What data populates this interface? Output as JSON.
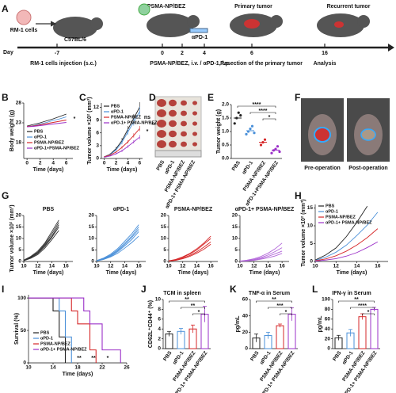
{
  "panels": [
    "A",
    "B",
    "C",
    "D",
    "E",
    "F",
    "G",
    "H",
    "I",
    "J",
    "K",
    "L"
  ],
  "timeline": {
    "cells": "RM-1 cells",
    "strain": "C57BL/6",
    "drug": "PSMA-NP/BEZ",
    "antibody": "αPD-1",
    "primary": "Primary tumor",
    "recurrent": "Recurrent tumor",
    "day_label": "Day",
    "days": [
      -7,
      0,
      2,
      4,
      6,
      16
    ],
    "steps": [
      "RM-1 cells injection (s.c.)",
      "PSMA-NP/BEZ, i.v. / αPD-1, i.p.",
      "Resection of the primary tumor",
      "Analysis"
    ]
  },
  "photo_d": {
    "labels": [
      "PBS",
      "αPD-1",
      "PSMA-NP/BEZ",
      "αPD-1+ PSMA-NP/BEZ"
    ]
  },
  "photo_f": {
    "labels": [
      "Pre-operation",
      "Post-operation"
    ]
  },
  "chart_data": [
    {
      "type": "line",
      "ylabel": "Body weight (g)",
      "xlabel": "Time (days)",
      "x": [
        0,
        1,
        2,
        3,
        4,
        5,
        6
      ],
      "xlim": [
        -0.5,
        7
      ],
      "xticks": [
        0,
        2,
        4,
        6
      ],
      "ylim": [
        14,
        28
      ],
      "yticks": [
        18,
        23,
        28
      ],
      "series": [
        {
          "name": "PBS",
          "color": "#222222",
          "values": [
            22.2,
            22.6,
            23,
            23.5,
            24,
            24.6,
            25.2
          ]
        },
        {
          "name": "αPD-1",
          "color": "#4a90d9",
          "values": [
            22,
            22.3,
            22.7,
            23.1,
            23.6,
            24,
            24.5
          ]
        },
        {
          "name": "PSMA-NP/BEZ",
          "color": "#d62728",
          "values": [
            22.1,
            22.2,
            22.5,
            22.8,
            23.1,
            23.4,
            23.7
          ]
        },
        {
          "name": "αPD-1+PSMA-NP/BEZ",
          "color": "#9b30c8",
          "values": [
            22,
            22.1,
            22.3,
            22.5,
            22.7,
            22.9,
            23.1
          ]
        }
      ],
      "annotations": [
        "*"
      ]
    },
    {
      "type": "line",
      "ylabel": "Tumor volume ×10² (mm³)",
      "xlabel": "Time (days)",
      "x": [
        0,
        1,
        2,
        3,
        4,
        5,
        6
      ],
      "xlim": [
        -0.5,
        6.5
      ],
      "xticks": [
        0,
        2,
        4,
        6
      ],
      "ylim": [
        0,
        13
      ],
      "yticks": [
        0,
        3,
        6,
        9,
        12
      ],
      "series": [
        {
          "name": "PBS",
          "color": "#222222",
          "values": [
            0.4,
            1,
            2.3,
            4.2,
            6.8,
            9.4,
            12
          ],
          "errors": [
            0.1,
            0.2,
            0.4,
            0.6,
            0.8,
            1,
            1.2
          ]
        },
        {
          "name": "αPD-1",
          "color": "#4a90d9",
          "values": [
            0.4,
            0.9,
            2,
            3.8,
            6.2,
            8.6,
            11
          ],
          "errors": [
            0.1,
            0.2,
            0.3,
            0.5,
            0.7,
            0.9,
            1.1
          ]
        },
        {
          "name": "PSMA-NP/BEZ",
          "color": "#d62728",
          "values": [
            0.4,
            0.8,
            1.5,
            2.6,
            3.9,
            5.4,
            7
          ],
          "errors": [
            0.1,
            0.1,
            0.2,
            0.3,
            0.4,
            0.5,
            0.6
          ]
        },
        {
          "name": "αPD-1+ PSMA-NP/BEZ",
          "color": "#9b30c8",
          "values": [
            0.3,
            0.6,
            1.1,
            1.8,
            2.8,
            3.9,
            5
          ],
          "errors": [
            0.1,
            0.1,
            0.2,
            0.3,
            0.3,
            0.4,
            0.5
          ]
        }
      ],
      "annotations": [
        "ns",
        "*",
        "**"
      ]
    },
    {
      "type": "scatter",
      "ylabel": "Tumor weight (g)",
      "categories": [
        "PBS",
        "αPD-1",
        "PSMA-NP/BEZ",
        "αPD-1+PSMA-NP/BEZ"
      ],
      "ylim": [
        0,
        2
      ],
      "yticks": [
        {
          "value": 0,
          "label": "0.0"
        },
        0.5,
        {
          "value": 1,
          "label": "1.0"
        },
        1.5,
        {
          "value": 2,
          "label": "2.0"
        }
      ],
      "groups": [
        {
          "color": "#222222",
          "points": [
            1.3,
            1.5,
            1.7,
            1.6
          ],
          "mean": 1.5
        },
        {
          "color": "#4a90d9",
          "points": [
            0.9,
            1.0,
            1.1,
            1.2,
            0.95
          ],
          "mean": 1.03
        },
        {
          "color": "#d62728",
          "points": [
            0.5,
            0.6,
            0.7
          ],
          "mean": 0.6
        },
        {
          "color": "#9b30c8",
          "points": [
            0.2,
            0.3,
            0.35,
            0.45,
            0.25
          ],
          "mean": 0.31
        }
      ],
      "annotations": [
        "****",
        "****",
        "*"
      ]
    },
    {
      "type": "line",
      "title": "PBS",
      "ylabel": "Tumor volume ×10² (mm³)",
      "xlabel": "Time (days)",
      "xlim": [
        10,
        17
      ],
      "xticks": [
        10,
        12,
        14,
        16
      ],
      "ylim": [
        0,
        20
      ],
      "yticks": [
        0,
        5,
        10,
        15,
        20
      ],
      "series": [
        {
          "color": "#333333",
          "x": [
            10,
            11,
            12,
            13,
            14,
            15
          ],
          "values": [
            0.5,
            2,
            4,
            7.5,
            12,
            17
          ]
        },
        {
          "color": "#333333",
          "x": [
            10,
            11,
            12,
            13,
            14,
            15
          ],
          "values": [
            0.4,
            1.6,
            3.5,
            6.5,
            10.5,
            15
          ]
        },
        {
          "color": "#333333",
          "x": [
            10,
            11,
            12,
            13,
            14,
            15
          ],
          "values": [
            0.6,
            2.2,
            4.5,
            8,
            13,
            18
          ]
        },
        {
          "color": "#333333",
          "x": [
            10,
            11,
            12,
            13,
            14,
            15
          ],
          "values": [
            0.3,
            1.4,
            3,
            5.8,
            9.5,
            13.5
          ]
        },
        {
          "color": "#333333",
          "x": [
            10,
            11,
            12,
            13,
            14,
            15
          ],
          "values": [
            0.5,
            1.8,
            3.8,
            7,
            11,
            16
          ]
        }
      ]
    },
    {
      "type": "line",
      "title": "αPD-1",
      "xlabel": "Time (days)",
      "xlim": [
        10,
        17
      ],
      "xticks": [
        10,
        12,
        14,
        16
      ],
      "ylim": [
        0,
        20
      ],
      "yticks": [
        0,
        5,
        10,
        15,
        20
      ],
      "series": [
        {
          "color": "#4a90d9",
          "x": [
            10,
            11,
            12,
            13,
            14,
            15,
            16
          ],
          "values": [
            0.3,
            1.3,
            2.8,
            5,
            8,
            11,
            15
          ]
        },
        {
          "color": "#4a90d9",
          "x": [
            10,
            11,
            12,
            13,
            14,
            15,
            16
          ],
          "values": [
            0.3,
            1,
            2.3,
            4.2,
            6.8,
            9.5,
            13
          ]
        },
        {
          "color": "#4a90d9",
          "x": [
            10,
            11,
            12,
            13,
            14,
            15,
            16
          ],
          "values": [
            0.4,
            1.5,
            3.2,
            5.6,
            8.8,
            12,
            16
          ]
        },
        {
          "color": "#4a90d9",
          "x": [
            10,
            11,
            12,
            13,
            14,
            15,
            16
          ],
          "values": [
            0.2,
            0.9,
            2,
            3.6,
            5.8,
            8.2,
            11
          ]
        },
        {
          "color": "#4a90d9",
          "x": [
            10,
            11,
            12,
            13,
            14,
            15,
            16
          ],
          "values": [
            0.3,
            1.2,
            2.6,
            4.6,
            7.4,
            10.4,
            14
          ]
        }
      ]
    },
    {
      "type": "line",
      "title": "PSMA-NP/BEZ",
      "xlabel": "Time (days)",
      "xlim": [
        10,
        17
      ],
      "xticks": [
        10,
        12,
        14,
        16
      ],
      "ylim": [
        0,
        20
      ],
      "yticks": [
        0,
        5,
        10,
        15,
        20
      ],
      "series": [
        {
          "color": "#d62728",
          "x": [
            10,
            11,
            12,
            13,
            14,
            15,
            16
          ],
          "values": [
            0.2,
            0.8,
            1.8,
            3.2,
            5,
            7.5,
            10
          ]
        },
        {
          "color": "#d62728",
          "x": [
            10,
            11,
            12,
            13,
            14,
            15,
            16
          ],
          "values": [
            0.2,
            0.6,
            1.4,
            2.6,
            4.2,
            6.2,
            8.5
          ]
        },
        {
          "color": "#d62728",
          "x": [
            10,
            11,
            12,
            13,
            14,
            15,
            16
          ],
          "values": [
            0.3,
            0.9,
            2,
            3.5,
            5.5,
            8,
            11
          ]
        },
        {
          "color": "#d62728",
          "x": [
            10,
            11,
            12,
            13,
            14,
            15,
            16
          ],
          "values": [
            0.2,
            0.5,
            1.2,
            2.2,
            3.6,
            5.3,
            7.5
          ]
        }
      ]
    },
    {
      "type": "line",
      "title": "αPD-1+ PSMA-NP/BEZ",
      "xlabel": "Time (days)",
      "xlim": [
        10,
        17
      ],
      "xticks": [
        10,
        12,
        14,
        16
      ],
      "ylim": [
        0,
        20
      ],
      "yticks": [
        0,
        5,
        10,
        15,
        20
      ],
      "series": [
        {
          "color": "#b266d9",
          "x": [
            10,
            11,
            12,
            13,
            14,
            15,
            16
          ],
          "values": [
            0.1,
            0.4,
            0.9,
            1.7,
            2.8,
            4.3,
            6
          ]
        },
        {
          "color": "#b266d9",
          "x": [
            10,
            11,
            12,
            13,
            14,
            15,
            16
          ],
          "values": [
            0.1,
            0.3,
            0.7,
            1.3,
            2.2,
            3.3,
            4.5
          ]
        },
        {
          "color": "#b266d9",
          "x": [
            10,
            11,
            12,
            13,
            14,
            15,
            16
          ],
          "values": [
            0.2,
            0.6,
            1.2,
            2.2,
            3.6,
            5.5,
            8
          ]
        },
        {
          "color": "#b266d9",
          "x": [
            10,
            11,
            12,
            13,
            14,
            15,
            16
          ],
          "values": [
            0.1,
            0.2,
            0.5,
            1,
            1.6,
            2.4,
            3.5
          ]
        }
      ]
    },
    {
      "type": "line",
      "ylabel": "Tumor volume ×10² (mm³)",
      "xlabel": "Time (days)",
      "xlim": [
        10,
        17
      ],
      "xticks": [
        10,
        12,
        14,
        16
      ],
      "ylim": [
        0,
        16
      ],
      "yticks": [
        0,
        5,
        10,
        15
      ],
      "series": [
        {
          "name": "PBS",
          "color": "#222222",
          "x": [
            10,
            11,
            12,
            13,
            14,
            15
          ],
          "values": [
            0.4,
            1.8,
            3.8,
            7,
            11,
            15.5
          ]
        },
        {
          "name": "αPD-1",
          "color": "#4a90d9",
          "x": [
            10,
            11,
            12,
            13,
            14,
            15,
            16
          ],
          "values": [
            0.3,
            1.2,
            2.6,
            4.6,
            7.3,
            10.2,
            13.8
          ]
        },
        {
          "name": "PSMA-NP/BEZ",
          "color": "#d62728",
          "x": [
            10,
            11,
            12,
            13,
            14,
            15,
            16
          ],
          "values": [
            0.2,
            0.7,
            1.6,
            2.9,
            4.6,
            6.7,
            9.2
          ]
        },
        {
          "name": "αPD-1+ PSMA-NP/BEZ",
          "color": "#9b30c8",
          "x": [
            10,
            11,
            12,
            13,
            14,
            15,
            16
          ],
          "values": [
            0.1,
            0.4,
            0.8,
            1.5,
            2.5,
            3.9,
            5.5
          ]
        }
      ]
    },
    {
      "type": "survival",
      "ylabel": "Survival (%)",
      "xlabel": "Time (days)",
      "xlim": [
        10,
        26
      ],
      "xticks": [
        10,
        14,
        18,
        22,
        26
      ],
      "ylim": [
        0,
        105
      ],
      "yticks": [
        0,
        50,
        100
      ],
      "series": [
        {
          "name": "PBS",
          "color": "#222222",
          "x": [
            10,
            14,
            15,
            16
          ],
          "values": [
            100,
            80,
            40,
            0
          ]
        },
        {
          "name": "αPD-1",
          "color": "#4a90d9",
          "x": [
            10,
            15,
            16,
            17
          ],
          "values": [
            100,
            80,
            40,
            0
          ]
        },
        {
          "name": "PSMA-NP/BEZ",
          "color": "#d62728",
          "x": [
            10,
            17,
            18,
            20,
            21
          ],
          "values": [
            100,
            80,
            60,
            20,
            0
          ]
        },
        {
          "name": "αPD-1+ PSMA-NP/BEZ",
          "color": "#9b30c8",
          "x": [
            10,
            19,
            20,
            22,
            25
          ],
          "values": [
            100,
            80,
            60,
            20,
            0
          ]
        }
      ],
      "annotations": [
        {
          "text": "**",
          "color": "#222222"
        },
        {
          "text": "**",
          "color": "#4a90d9"
        },
        {
          "text": "*",
          "color": "#d62728"
        }
      ]
    },
    {
      "type": "bar",
      "title": "TCM in spleen",
      "ylabel": "CD62L⁺CD44⁺ (%)",
      "categories": [
        "PBS",
        "αPD-1",
        "PSMA-NP/BEZ",
        "αPD-1+ PSMA-NP/BEZ"
      ],
      "colors": [
        "#222222",
        "#4a90d9",
        "#d62728",
        "#9b30c8"
      ],
      "values": [
        3,
        3.5,
        4,
        7
      ],
      "errors": [
        0.5,
        0.6,
        0.8,
        1.6
      ],
      "ylim": [
        0,
        10
      ],
      "yticks": [
        0,
        2,
        4,
        6,
        8,
        10
      ],
      "annotations": [
        "**",
        "**",
        "*"
      ]
    },
    {
      "type": "bar",
      "title": "TNF-α in Serum",
      "ylabel": "pg/mL",
      "categories": [
        "PBS",
        "αPD-1",
        "PSMA-NP/BEZ",
        "αPD-1+ PSMA-NP/BEZ"
      ],
      "colors": [
        "#222222",
        "#4a90d9",
        "#d62728",
        "#9b30c8"
      ],
      "values": [
        13,
        16,
        28,
        42
      ],
      "errors": [
        5,
        4,
        2,
        8
      ],
      "ylim": [
        0,
        60
      ],
      "yticks": [
        0,
        20,
        40,
        60
      ],
      "annotations": [
        "**",
        "***",
        "*"
      ]
    },
    {
      "type": "bar",
      "title": "IFN-γ in Serum",
      "ylabel": "pg/mL",
      "categories": [
        "PBS",
        "αPD-1",
        "PSMA-NP/BEZ",
        "αPD-1+ PSMA-NP/BEZ"
      ],
      "colors": [
        "#222222",
        "#4a90d9",
        "#d62728",
        "#9b30c8"
      ],
      "values": [
        22,
        32,
        65,
        80
      ],
      "errors": [
        5,
        7,
        6,
        4
      ],
      "ylim": [
        0,
        100
      ],
      "yticks": [
        0,
        20,
        40,
        60,
        80,
        100
      ],
      "annotations": [
        "**",
        "****",
        "*"
      ]
    }
  ]
}
